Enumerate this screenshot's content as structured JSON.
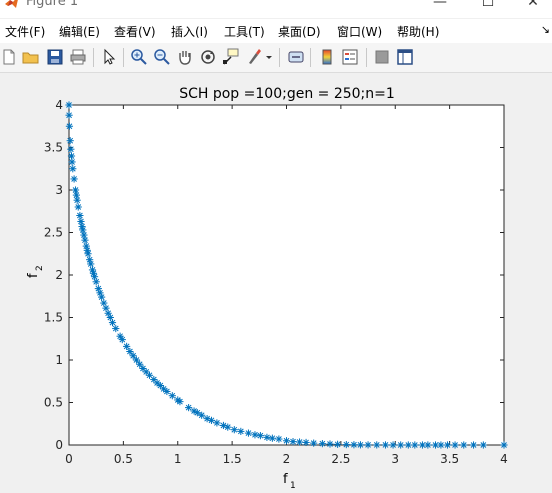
{
  "window": {
    "title": "Figure 1",
    "minimize": "—",
    "maximize": "☐",
    "close": "✕"
  },
  "menu": {
    "items": [
      "文件(F)",
      "编辑(E)",
      "查看(V)",
      "插入(I)",
      "工具(T)",
      "桌面(D)",
      "窗口(W)",
      "帮助(H)"
    ],
    "overflow_arrow": "↘"
  },
  "toolbar": {
    "buttons": [
      "new-figure-icon",
      "open-file-icon",
      "save-icon",
      "print-icon",
      "pointer-icon",
      "zoom-in-icon",
      "zoom-out-icon",
      "pan-hand-icon",
      "rotate-3d-icon",
      "data-cursor-icon",
      "brush-icon",
      "brush-dropdown-icon",
      "link-plot-icon",
      "colorbar-icon",
      "legend-icon",
      "hide-plot-tools-icon",
      "show-plot-tools-icon"
    ]
  },
  "chart_data": {
    "type": "scatter",
    "title": "SCH  pop =100;gen = 250;n=1",
    "xlabel": "f",
    "xlabel_sub": "1",
    "ylabel": "f",
    "ylabel_sub": "2",
    "xlim": [
      0,
      4
    ],
    "ylim": [
      0,
      4
    ],
    "xticks": [
      "0",
      "0.5",
      "1",
      "1.5",
      "2",
      "2.5",
      "3",
      "3.5",
      "4"
    ],
    "yticks": [
      "0",
      "0.5",
      "1",
      "1.5",
      "2",
      "2.5",
      "3",
      "3.5",
      "4"
    ],
    "marker": "*",
    "color": "#0072bd",
    "grid": false,
    "x": [
      0.0,
      0.0009,
      0.004,
      0.011,
      0.017,
      0.023,
      0.028,
      0.035,
      0.047,
      0.06,
      0.068,
      0.075,
      0.085,
      0.1,
      0.11,
      0.12,
      0.127,
      0.137,
      0.147,
      0.159,
      0.168,
      0.175,
      0.19,
      0.2,
      0.216,
      0.225,
      0.235,
      0.25,
      0.27,
      0.285,
      0.3,
      0.32,
      0.34,
      0.36,
      0.38,
      0.4,
      0.43,
      0.47,
      0.49,
      0.53,
      0.56,
      0.59,
      0.62,
      0.65,
      0.68,
      0.71,
      0.74,
      0.78,
      0.81,
      0.84,
      0.87,
      0.9,
      0.95,
      1.0,
      1.02,
      1.1,
      1.15,
      1.18,
      1.22,
      1.27,
      1.31,
      1.36,
      1.42,
      1.46,
      1.52,
      1.58,
      1.65,
      1.71,
      1.76,
      1.82,
      1.87,
      1.93,
      2.0,
      2.06,
      2.12,
      2.18,
      2.25,
      2.33,
      2.4,
      2.47,
      2.55,
      2.62,
      2.68,
      2.75,
      2.83,
      2.91,
      2.98,
      3.05,
      3.12,
      3.18,
      3.25,
      3.3,
      3.37,
      3.42,
      3.48,
      3.55,
      3.63,
      3.72,
      3.81,
      4.0
    ],
    "y": [
      4.0,
      3.88,
      3.75,
      3.58,
      3.48,
      3.4,
      3.33,
      3.25,
      3.13,
      3.0,
      2.94,
      2.88,
      2.8,
      2.7,
      2.63,
      2.57,
      2.53,
      2.47,
      2.41,
      2.34,
      2.29,
      2.25,
      2.18,
      2.13,
      2.06,
      2.02,
      1.98,
      1.92,
      1.84,
      1.79,
      1.74,
      1.67,
      1.61,
      1.55,
      1.5,
      1.44,
      1.37,
      1.28,
      1.24,
      1.16,
      1.1,
      1.05,
      1.0,
      0.95,
      0.9,
      0.86,
      0.82,
      0.77,
      0.73,
      0.7,
      0.66,
      0.63,
      0.58,
      0.53,
      0.51,
      0.44,
      0.4,
      0.38,
      0.35,
      0.31,
      0.29,
      0.26,
      0.23,
      0.21,
      0.18,
      0.16,
      0.14,
      0.12,
      0.11,
      0.09,
      0.08,
      0.07,
      0.05,
      0.04,
      0.035,
      0.03,
      0.022,
      0.016,
      0.012,
      0.008,
      0.005,
      0.003,
      0.002,
      0.0015,
      0.001,
      0.0008,
      0.0005,
      0.0003,
      0.0002,
      0.0001,
      5e-05,
      3e-05,
      2e-05,
      1e-05,
      0.0,
      0.0,
      0.0,
      0.0,
      0.0,
      0.0
    ]
  }
}
